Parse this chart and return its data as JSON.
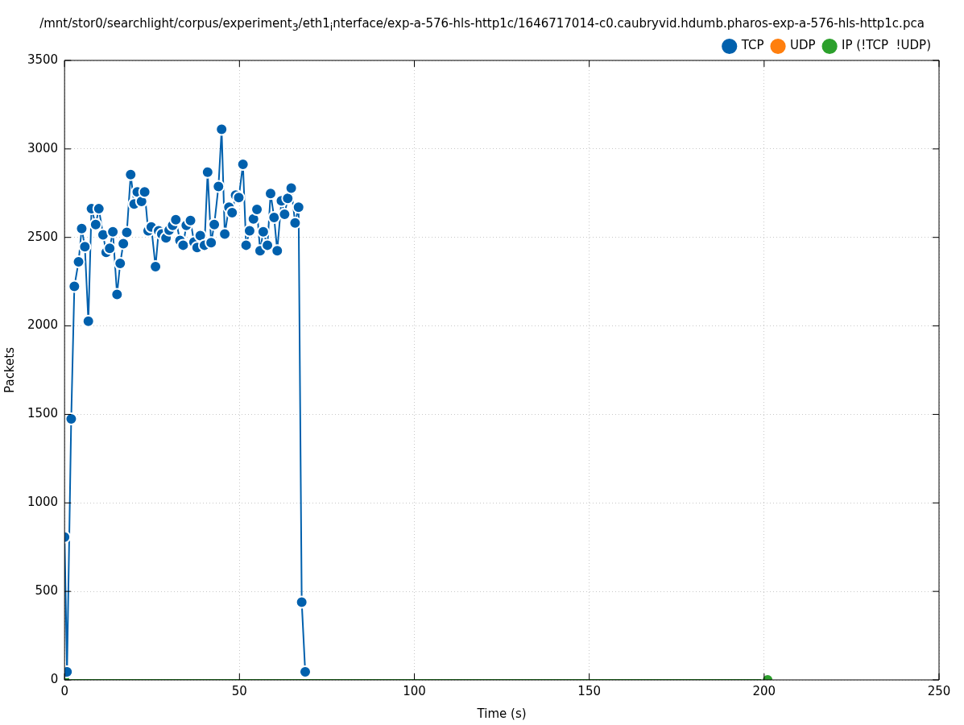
{
  "chart_data": {
    "type": "line",
    "title": "/mnt/stor0/searchlight/corpus/experiment$_{3}$/eth1$_{i}$nterface/exp-a-576-hls-http1c/1646717014-c0.caubryvid.hdumb.pharos-exp-a-576-hls-http1c.pca",
    "xlabel": "Time (s)",
    "ylabel": "Packets",
    "xlim": [
      0,
      250
    ],
    "xticks": [
      0,
      50,
      100,
      150,
      200,
      250
    ],
    "ylim": [
      0,
      3500
    ],
    "yticks": [
      0,
      500,
      1000,
      1500,
      2000,
      2500,
      3000,
      3500
    ],
    "grid": true,
    "legend": "top right",
    "marker": "circle",
    "line_style": "solid",
    "series": [
      {
        "name": "TCP",
        "color": "#0060ad",
        "x": [
          0,
          0.7,
          1.9,
          2.8,
          4.0,
          4.9,
          5.8,
          6.8,
          7.7,
          8.9,
          9.8,
          11.0,
          11.9,
          12.9,
          13.8,
          15.0,
          15.9,
          16.8,
          17.8,
          18.9,
          19.9,
          20.8,
          22.0,
          22.9,
          23.9,
          24.8,
          26.0,
          26.9,
          27.8,
          29.0,
          29.9,
          30.9,
          31.8,
          33.0,
          33.9,
          34.8,
          36.0,
          37.0,
          37.9,
          38.8,
          40.0,
          40.9,
          41.9,
          42.8,
          44.0,
          44.9,
          45.8,
          47.0,
          47.9,
          48.9,
          49.8,
          51.0,
          51.9,
          52.9,
          54.0,
          55.0,
          55.9,
          56.8,
          58.0,
          58.9,
          59.9,
          60.8,
          62.0,
          62.9,
          63.8,
          64.8,
          65.9,
          66.9,
          67.8,
          68.8
        ],
        "values": [
          807,
          45,
          1475,
          2223,
          2362,
          2550,
          2447,
          2026,
          2662,
          2573,
          2662,
          2515,
          2416,
          2438,
          2532,
          2178,
          2353,
          2465,
          2528,
          2855,
          2689,
          2757,
          2703,
          2757,
          2537,
          2559,
          2335,
          2537,
          2519,
          2497,
          2541,
          2568,
          2600,
          2483,
          2456,
          2568,
          2595,
          2474,
          2443,
          2510,
          2456,
          2869,
          2470,
          2573,
          2788,
          3111,
          2519,
          2671,
          2640,
          2739,
          2725,
          2913,
          2456,
          2537,
          2604,
          2658,
          2425,
          2532,
          2456,
          2748,
          2613,
          2425,
          2707,
          2631,
          2721,
          2779,
          2582,
          2671,
          439,
          45
        ]
      },
      {
        "name": "UDP",
        "color": "#ff7f0e"
      },
      {
        "name": "IP (!TCP  !UDP)",
        "color": "#2ca02c",
        "x": [
          0,
          201
        ],
        "values": [
          0,
          0
        ]
      }
    ]
  }
}
